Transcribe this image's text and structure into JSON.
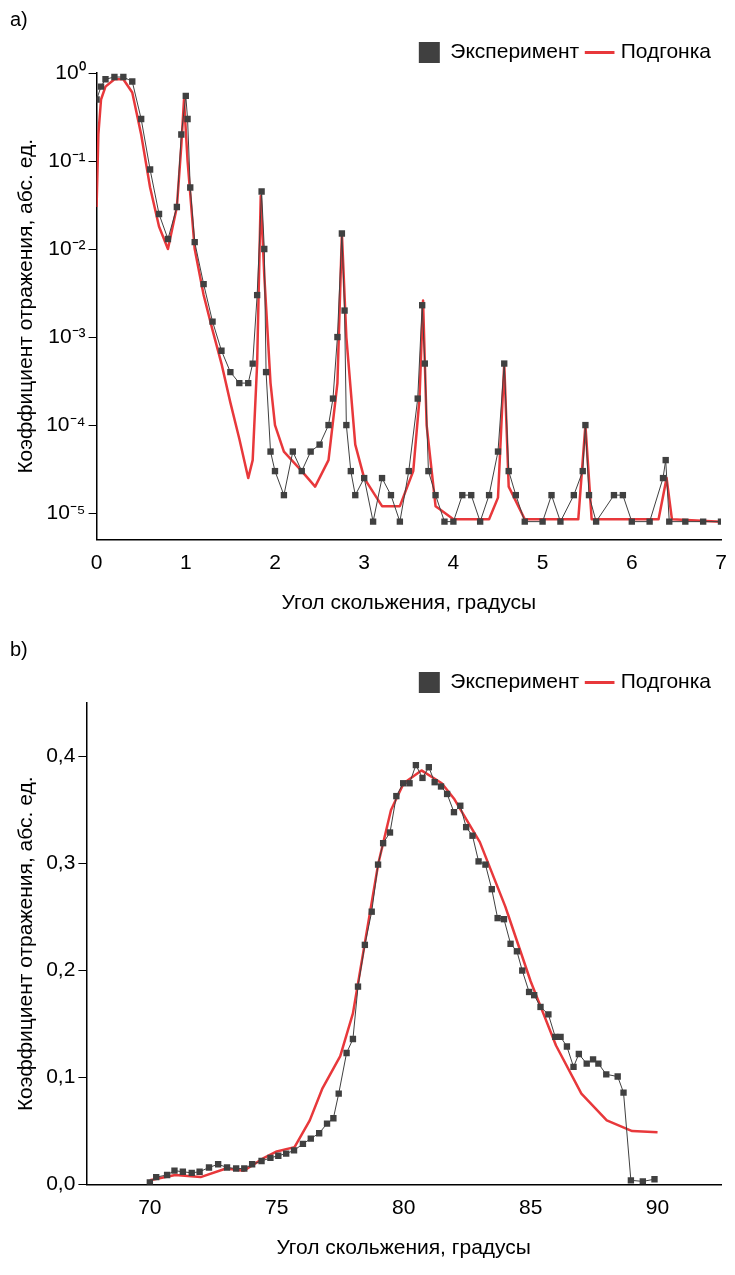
{
  "chart_data": [
    {
      "type": "line",
      "title": "a)",
      "xlabel": "Угол скольжения, градусы",
      "ylabel": "Коэффициент отражения, абс. ед.",
      "log": "y",
      "grid": false,
      "legend": "top right",
      "xlim": [
        0,
        7
      ],
      "xticks": [
        0,
        1,
        2,
        3,
        4,
        5,
        6,
        7
      ],
      "ylim": [
        5e-06,
        1
      ],
      "yticks": [
        {
          "value": 1,
          "label": "10⁰"
        },
        {
          "value": 0.1,
          "label": "10⁻¹"
        },
        {
          "value": 0.01,
          "label": "10⁻²"
        },
        {
          "value": 0.001,
          "label": "10⁻³"
        },
        {
          "value": 0.0001,
          "label": "10⁻⁴"
        },
        {
          "value": 1e-05,
          "label": "10⁻⁵"
        }
      ],
      "series": [
        {
          "name": "Эксперимент",
          "color": "#404040",
          "marker": "square",
          "line_style": "solid",
          "x": [
            0,
            0.05,
            0.1,
            0.2,
            0.3,
            0.4,
            0.5,
            0.6,
            0.7,
            0.8,
            0.9,
            0.95,
            1.0,
            1.02,
            1.05,
            1.1,
            1.2,
            1.3,
            1.4,
            1.5,
            1.6,
            1.7,
            1.75,
            1.8,
            1.85,
            1.88,
            1.9,
            1.95,
            2.0,
            2.1,
            2.2,
            2.3,
            2.4,
            2.5,
            2.6,
            2.65,
            2.7,
            2.75,
            2.78,
            2.8,
            2.85,
            2.9,
            3.0,
            3.1,
            3.2,
            3.3,
            3.4,
            3.5,
            3.6,
            3.65,
            3.68,
            3.72,
            3.8,
            3.9,
            4.0,
            4.1,
            4.2,
            4.3,
            4.4,
            4.5,
            4.57,
            4.62,
            4.7,
            4.8,
            5.0,
            5.1,
            5.2,
            5.35,
            5.45,
            5.48,
            5.52,
            5.6,
            5.8,
            5.9,
            6.0,
            6.2,
            6.35,
            6.38,
            6.42,
            6.6,
            6.8,
            7.0
          ],
          "values": [
            0.5,
            0.7,
            0.85,
            0.9,
            0.9,
            0.8,
            0.3,
            0.08,
            0.025,
            0.013,
            0.03,
            0.2,
            0.55,
            0.3,
            0.05,
            0.012,
            0.004,
            0.0015,
            0.0007,
            0.0004,
            0.0003,
            0.0003,
            0.0005,
            0.003,
            0.045,
            0.01,
            0.0004,
            5e-05,
            3e-05,
            1.6e-05,
            5e-05,
            3e-05,
            5e-05,
            6e-05,
            0.0001,
            0.0002,
            0.001,
            0.015,
            0.002,
            0.0001,
            3e-05,
            1.6e-05,
            2.5e-05,
            8e-06,
            2.5e-05,
            1.6e-05,
            8e-06,
            3e-05,
            0.0002,
            0.0023,
            0.0005,
            3e-05,
            1.6e-05,
            8e-06,
            8e-06,
            1.6e-05,
            1.6e-05,
            8e-06,
            1.6e-05,
            5e-05,
            0.0005,
            3e-05,
            1.6e-05,
            8e-06,
            8e-06,
            1.6e-05,
            8e-06,
            1.6e-05,
            3e-05,
            0.0001,
            1.6e-05,
            8e-06,
            1.6e-05,
            1.6e-05,
            8e-06,
            8e-06,
            2.5e-05,
            4e-05,
            8e-06,
            8e-06,
            8e-06,
            8e-06
          ]
        },
        {
          "name": "Подгонка",
          "color": "#e8383b",
          "marker": "none",
          "line_style": "solid",
          "x": [
            0,
            0.02,
            0.05,
            0.1,
            0.2,
            0.3,
            0.4,
            0.5,
            0.6,
            0.7,
            0.8,
            0.9,
            0.95,
            0.98,
            1.02,
            1.1,
            1.2,
            1.3,
            1.4,
            1.5,
            1.6,
            1.7,
            1.75,
            1.8,
            1.84,
            1.88,
            1.95,
            2.0,
            2.1,
            2.3,
            2.45,
            2.6,
            2.7,
            2.75,
            2.8,
            2.9,
            3.0,
            3.2,
            3.4,
            3.55,
            3.62,
            3.66,
            3.7,
            3.8,
            4.0,
            4.4,
            4.5,
            4.57,
            4.62,
            4.8,
            5.4,
            5.48,
            5.55,
            6.3,
            6.39,
            6.45,
            7.0
          ],
          "values": [
            0.03,
            0.2,
            0.5,
            0.7,
            0.85,
            0.85,
            0.6,
            0.2,
            0.05,
            0.018,
            0.01,
            0.03,
            0.15,
            0.5,
            0.1,
            0.01,
            0.003,
            0.0012,
            0.0005,
            0.00018,
            7e-05,
            2.5e-05,
            4e-05,
            0.0005,
            0.04,
            0.005,
            0.0003,
            0.0001,
            5e-05,
            3e-05,
            2e-05,
            4e-05,
            0.0003,
            0.015,
            0.001,
            6e-05,
            2.5e-05,
            1.2e-05,
            1.2e-05,
            3e-05,
            0.0002,
            0.0026,
            0.0001,
            1.2e-05,
            8.5e-06,
            8.5e-06,
            1.5e-05,
            0.0005,
            2e-05,
            8.5e-06,
            8.5e-06,
            0.0001,
            8.5e-06,
            8.5e-06,
            2.5e-05,
            8.5e-06,
            8e-06
          ]
        }
      ]
    },
    {
      "type": "line",
      "title": "b)",
      "xlabel": "Угол скольжения, градусы",
      "ylabel": "Коэффициент отражения, абс. ед.",
      "grid": false,
      "legend": "top right",
      "xlim": [
        67.5,
        92.5
      ],
      "xticks": [
        70,
        75,
        80,
        85,
        90
      ],
      "ylim": [
        0,
        0.45
      ],
      "yticks": [
        {
          "value": 0,
          "label": "0,0"
        },
        {
          "value": 0.1,
          "label": "0,1"
        },
        {
          "value": 0.2,
          "label": "0,2"
        },
        {
          "value": 0.3,
          "label": "0,3"
        },
        {
          "value": 0.4,
          "label": "0,4"
        }
      ],
      "series": [
        {
          "name": "Эксперимент",
          "color": "#404040",
          "marker": "square",
          "line_style": "solid",
          "x": [
            70.0,
            70.25,
            70.68,
            70.97,
            71.3,
            71.65,
            71.96,
            72.33,
            72.69,
            73.04,
            73.4,
            73.72,
            74.03,
            74.4,
            74.75,
            75.06,
            75.37,
            75.68,
            76.03,
            76.34,
            76.67,
            76.98,
            77.23,
            77.44,
            77.75,
            78.0,
            78.2,
            78.47,
            78.74,
            78.99,
            79.19,
            79.46,
            79.71,
            79.98,
            80.23,
            80.48,
            80.74,
            80.99,
            81.22,
            81.47,
            81.71,
            81.98,
            82.23,
            82.46,
            82.71,
            82.95,
            83.22,
            83.47,
            83.7,
            83.95,
            84.21,
            84.46,
            84.67,
            84.94,
            85.14,
            85.39,
            85.7,
            85.97,
            86.18,
            86.43,
            86.69,
            86.9,
            87.21,
            87.46,
            87.67,
            87.98,
            88.43,
            88.66,
            88.95,
            89.42,
            89.88
          ],
          "values": [
            0.002,
            0.007,
            0.009,
            0.013,
            0.012,
            0.011,
            0.012,
            0.016,
            0.019,
            0.016,
            0.015,
            0.015,
            0.019,
            0.022,
            0.025,
            0.027,
            0.029,
            0.032,
            0.038,
            0.043,
            0.048,
            0.057,
            0.062,
            0.085,
            0.123,
            0.136,
            0.185,
            0.224,
            0.255,
            0.299,
            0.319,
            0.329,
            0.363,
            0.375,
            0.375,
            0.392,
            0.38,
            0.39,
            0.376,
            0.372,
            0.365,
            0.348,
            0.354,
            0.334,
            0.326,
            0.302,
            0.299,
            0.276,
            0.249,
            0.248,
            0.225,
            0.218,
            0.2,
            0.18,
            0.177,
            0.166,
            0.159,
            0.138,
            0.138,
            0.129,
            0.11,
            0.122,
            0.113,
            0.117,
            0.113,
            0.103,
            0.101,
            0.086,
            0.004,
            0.003,
            0.005
          ]
        },
        {
          "name": "Подгонка",
          "color": "#e8383b",
          "marker": "none",
          "line_style": "solid",
          "x": [
            70,
            71,
            72,
            73,
            73.7,
            74.5,
            75,
            75.7,
            76.3,
            76.8,
            77.5,
            78,
            78.5,
            79,
            79.5,
            80,
            80.7,
            81.5,
            82,
            83,
            84,
            85,
            86,
            87,
            88,
            89,
            90
          ],
          "values": [
            0.004,
            0.009,
            0.007,
            0.015,
            0.013,
            0.025,
            0.031,
            0.035,
            0.06,
            0.09,
            0.12,
            0.16,
            0.23,
            0.3,
            0.35,
            0.375,
            0.387,
            0.375,
            0.36,
            0.32,
            0.26,
            0.19,
            0.13,
            0.085,
            0.06,
            0.05,
            0.049
          ]
        }
      ]
    }
  ]
}
